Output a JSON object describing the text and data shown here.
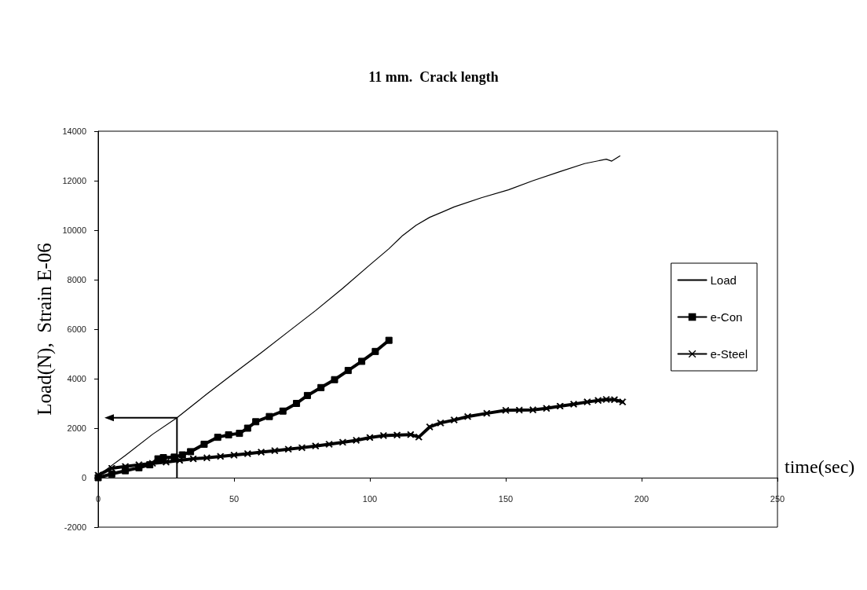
{
  "chart_data": {
    "type": "line",
    "title": "11 mm.  Crack length",
    "xlabel": "time(sec)",
    "ylabel": "Load(N),  Strain E-06",
    "xlim": [
      0,
      250
    ],
    "xticks": [
      0,
      50,
      100,
      150,
      200,
      250
    ],
    "ylim": [
      -2000,
      14000
    ],
    "yticks": [
      -2000,
      0,
      2000,
      4000,
      6000,
      8000,
      10000,
      12000,
      14000
    ],
    "grid": false,
    "legend": "right",
    "line_style": "solid",
    "series": [
      {
        "name": "Load",
        "color": "#000000",
        "marker": "none",
        "x": [
          0,
          2,
          10,
          20,
          29,
          40,
          50,
          60,
          70,
          80,
          90,
          100,
          107,
          112,
          117,
          122,
          127,
          131,
          141,
          151,
          160,
          170,
          179,
          187,
          189,
          192
        ],
        "values": [
          0,
          250,
          900,
          1750,
          2420,
          3380,
          4220,
          5050,
          5900,
          6750,
          7650,
          8600,
          9250,
          9780,
          10200,
          10520,
          10750,
          10940,
          11310,
          11630,
          12000,
          12370,
          12690,
          12870,
          12790,
          13000
        ]
      },
      {
        "name": "e-Con",
        "color": "#000000",
        "marker": "square",
        "x": [
          0,
          5,
          10,
          15,
          19,
          22,
          24,
          28,
          31,
          34,
          39,
          44,
          48,
          52,
          55,
          58,
          63,
          68,
          73,
          77,
          82,
          87,
          92,
          97,
          102,
          107
        ],
        "values": [
          0,
          150,
          280,
          400,
          520,
          760,
          810,
          830,
          920,
          1050,
          1350,
          1630,
          1730,
          1790,
          2000,
          2260,
          2470,
          2690,
          3000,
          3320,
          3640,
          3960,
          4330,
          4700,
          5100,
          5550
        ]
      },
      {
        "name": "e-Steel",
        "color": "#000000",
        "marker": "cross",
        "x": [
          0,
          5,
          10,
          15,
          20,
          25,
          30,
          35,
          40,
          45,
          50,
          55,
          60,
          65,
          70,
          75,
          80,
          85,
          90,
          95,
          100,
          105,
          110,
          115,
          118,
          122,
          126,
          131,
          136,
          143,
          150,
          155,
          160,
          165,
          170,
          175,
          180,
          184,
          187,
          190,
          193
        ],
        "values": [
          100,
          380,
          450,
          520,
          580,
          630,
          700,
          760,
          800,
          860,
          910,
          970,
          1030,
          1090,
          1150,
          1210,
          1280,
          1350,
          1430,
          1510,
          1620,
          1700,
          1720,
          1740,
          1640,
          2050,
          2210,
          2330,
          2470,
          2600,
          2720,
          2730,
          2740,
          2800,
          2890,
          2970,
          3060,
          3120,
          3160,
          3150,
          3060
        ]
      }
    ]
  }
}
